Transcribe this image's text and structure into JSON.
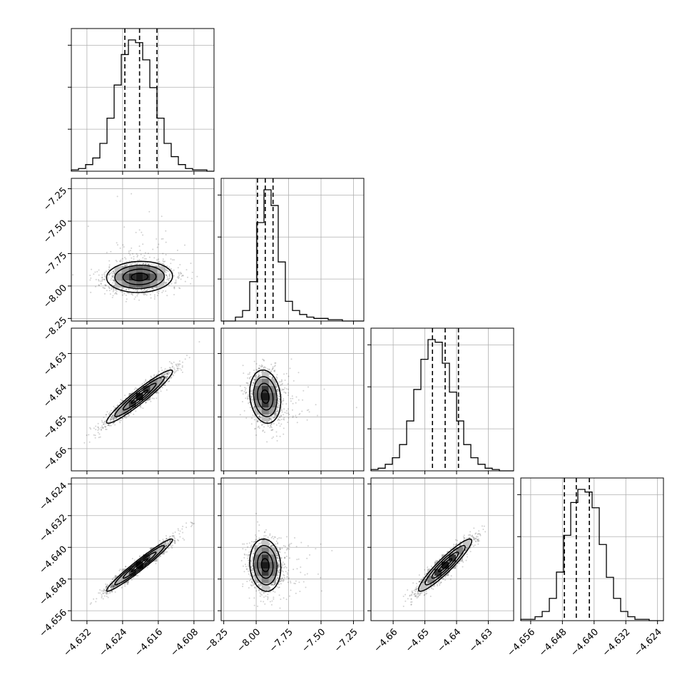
{
  "chart_data": {
    "type": "corner",
    "grid": true,
    "params": [
      {
        "range": [
          -4.6355,
          -4.6035
        ],
        "ticks": [
          -4.632,
          -4.624,
          -4.616,
          -4.608
        ],
        "tick_labels": [
          "−4.632",
          "−4.624",
          "−4.616",
          "−4.608"
        ],
        "median": -4.6202,
        "q16": -4.6235,
        "q84": -4.6163,
        "sd": 0.0037
      },
      {
        "range": [
          -8.27,
          -7.17
        ],
        "ticks": [
          -8.25,
          -8.0,
          -7.75,
          -7.5,
          -7.25
        ],
        "tick_labels": [
          "−8.25",
          "−8.00",
          "−7.75",
          "−7.50",
          "−7.25"
        ],
        "median": -7.93,
        "q16": -7.99,
        "q84": -7.87,
        "sd": 0.06
      },
      {
        "range": [
          -4.667,
          -4.622
        ],
        "ticks": [
          -4.66,
          -4.65,
          -4.64,
          -4.63
        ],
        "tick_labels": [
          "−4.66",
          "−4.65",
          "−4.64",
          "−4.63"
        ],
        "median": -4.6436,
        "q16": -4.6476,
        "q84": -4.6394,
        "sd": 0.0042
      },
      {
        "range": [
          -4.6585,
          -4.6225
        ],
        "ticks": [
          -4.656,
          -4.648,
          -4.64,
          -4.632,
          -4.624
        ],
        "tick_labels": [
          "−4.656",
          "−4.648",
          "−4.640",
          "−4.632",
          "−4.624"
        ],
        "median": -4.6445,
        "q16": -4.6475,
        "q84": -4.6412,
        "sd": 0.0033
      }
    ],
    "histograms": [
      {
        "param": 0,
        "bins": 20,
        "counts": [
          1,
          2,
          5,
          10,
          21,
          40,
          65,
          88,
          99,
          97,
          84,
          63,
          40,
          21,
          11,
          5,
          2,
          1,
          1,
          0
        ],
        "y_ticks": [
          0.32,
          0.64,
          0.96
        ]
      },
      {
        "param": 1,
        "bins": 20,
        "counts": [
          0,
          0,
          3,
          8,
          30,
          75,
          100,
          88,
          45,
          15,
          8,
          5,
          3,
          2,
          2,
          1,
          1,
          0,
          0,
          0
        ],
        "y_ticks": [
          0.32,
          0.64,
          0.96
        ]
      },
      {
        "param": 2,
        "bins": 20,
        "counts": [
          1,
          2,
          5,
          10,
          20,
          38,
          62,
          85,
          100,
          98,
          82,
          60,
          38,
          20,
          10,
          5,
          2,
          1,
          0,
          0
        ],
        "y_ticks": [
          0.32,
          0.64,
          0.96
        ]
      },
      {
        "param": 3,
        "bins": 20,
        "counts": [
          1,
          1,
          3,
          7,
          17,
          37,
          65,
          90,
          100,
          98,
          86,
          58,
          33,
          17,
          7,
          3,
          1,
          1,
          0,
          0
        ],
        "y_ticks": [
          0.32,
          0.64,
          0.96
        ]
      }
    ],
    "pairs": [
      {
        "x": 0,
        "y": 1,
        "rho": 0.05
      },
      {
        "x": 0,
        "y": 2,
        "rho": 0.95
      },
      {
        "x": 1,
        "y": 2,
        "rho": -0.15
      },
      {
        "x": 0,
        "y": 3,
        "rho": 0.97
      },
      {
        "x": 1,
        "y": 3,
        "rho": -0.1
      },
      {
        "x": 2,
        "y": 3,
        "rho": 0.93
      }
    ],
    "contour_levels_sigma": [
      0.5,
      1.0,
      1.5,
      2.0
    ]
  }
}
